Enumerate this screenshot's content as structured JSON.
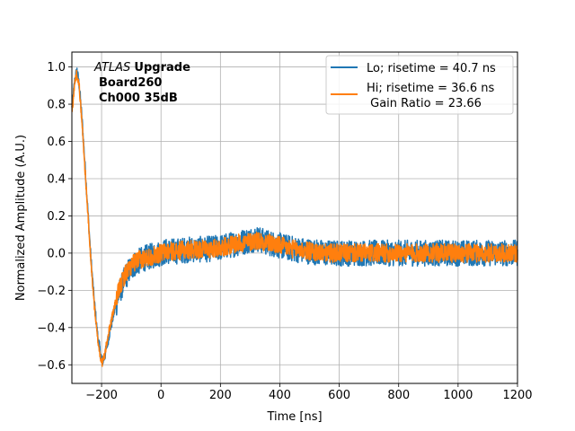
{
  "chart_data": {
    "type": "line",
    "title": "",
    "xlabel": "Time [ns]",
    "ylabel": "Normalized Amplitude (A.U.)",
    "xlim": [
      -300,
      1200
    ],
    "ylim": [
      -0.7,
      1.08
    ],
    "xticks": [
      -200,
      0,
      200,
      400,
      600,
      800,
      1000,
      1200
    ],
    "yticks": [
      -0.6,
      -0.4,
      -0.2,
      0.0,
      0.2,
      0.4,
      0.6,
      0.8,
      1.0
    ],
    "xtick_labels": [
      "−200",
      "0",
      "200",
      "400",
      "600",
      "800",
      "1000",
      "1200"
    ],
    "ytick_labels": [
      "−0.6",
      "−0.4",
      "−0.2",
      "0.0",
      "0.2",
      "0.4",
      "0.6",
      "0.8",
      "1.0"
    ],
    "grid": true,
    "legend_position": "upper right",
    "legend": {
      "lo": "Lo; risetime = 40.7 ns",
      "hi": "Hi; risetime = 36.6 ns",
      "gain": " Gain Ratio = 23.66"
    },
    "annotation": {
      "atlas": "ATLAS",
      "upgrade": "Upgrade",
      "board": "Board260",
      "channel": "Ch000 35dB"
    },
    "colors": {
      "lo": "#1f77b4",
      "hi": "#ff7f0e",
      "grid": "#b0b0b0"
    },
    "series": [
      {
        "name": "Lo; risetime = 40.7 ns",
        "x": [
          -300,
          -290,
          -283,
          -275,
          -265,
          -255,
          -245,
          -235,
          -225,
          -215,
          -205,
          -198,
          -190,
          -180,
          -170,
          -160,
          -150,
          -140,
          -130,
          -120,
          -110,
          -100,
          -90,
          -80,
          -60,
          -40,
          -20,
          0,
          20,
          50,
          100,
          150,
          200,
          250,
          300,
          320,
          350,
          400,
          450,
          500,
          550,
          600,
          650,
          700,
          750,
          800,
          850,
          900,
          950,
          1000,
          1050,
          1100,
          1150,
          1200
        ],
        "y": [
          0.78,
          0.93,
          0.98,
          0.9,
          0.7,
          0.45,
          0.2,
          -0.05,
          -0.25,
          -0.42,
          -0.53,
          -0.58,
          -0.56,
          -0.48,
          -0.4,
          -0.33,
          -0.27,
          -0.21,
          -0.17,
          -0.13,
          -0.1,
          -0.08,
          -0.06,
          -0.05,
          -0.03,
          -0.02,
          -0.01,
          0.0,
          0.01,
          0.01,
          0.02,
          0.02,
          0.03,
          0.05,
          0.07,
          0.08,
          0.06,
          0.04,
          0.02,
          0.01,
          0.0,
          0.0,
          0.0,
          0.0,
          0.0,
          0.0,
          0.0,
          0.0,
          0.0,
          0.0,
          0.0,
          0.0,
          0.0,
          0.0
        ],
        "noise_amplitude": 0.07
      },
      {
        "name": "Hi; risetime = 36.6 ns",
        "x": [
          -300,
          -290,
          -283,
          -275,
          -265,
          -255,
          -245,
          -235,
          -225,
          -215,
          -205,
          -198,
          -190,
          -180,
          -170,
          -160,
          -150,
          -140,
          -130,
          -120,
          -110,
          -100,
          -90,
          -80,
          -60,
          -40,
          -20,
          0,
          20,
          50,
          100,
          150,
          200,
          250,
          300,
          320,
          350,
          400,
          450,
          500,
          550,
          600,
          650,
          700,
          750,
          800,
          850,
          900,
          950,
          1000,
          1050,
          1100,
          1150,
          1200
        ],
        "y": [
          0.75,
          0.92,
          0.97,
          0.89,
          0.68,
          0.43,
          0.18,
          -0.07,
          -0.27,
          -0.44,
          -0.55,
          -0.59,
          -0.55,
          -0.46,
          -0.38,
          -0.31,
          -0.25,
          -0.19,
          -0.15,
          -0.11,
          -0.09,
          -0.07,
          -0.05,
          -0.04,
          -0.03,
          -0.02,
          -0.01,
          0.0,
          0.01,
          0.01,
          0.02,
          0.02,
          0.03,
          0.05,
          0.06,
          0.07,
          0.06,
          0.04,
          0.02,
          0.01,
          0.0,
          0.0,
          0.0,
          0.0,
          0.0,
          0.0,
          0.0,
          0.0,
          0.0,
          0.0,
          0.0,
          0.0,
          0.0,
          0.0
        ],
        "noise_amplitude": 0.05
      }
    ]
  }
}
